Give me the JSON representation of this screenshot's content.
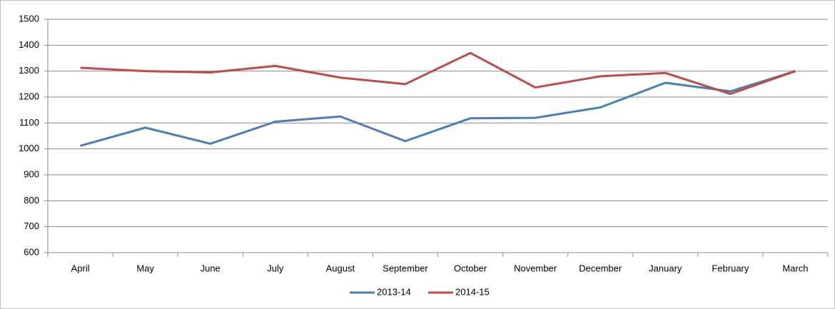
{
  "chart_data": {
    "type": "line",
    "categories": [
      "April",
      "May",
      "June",
      "July",
      "August",
      "September",
      "October",
      "November",
      "December",
      "January",
      "February",
      "March"
    ],
    "series": [
      {
        "name": "2013-14",
        "color": "#4a7ebb",
        "values": [
          1012,
          1082,
          1020,
          1105,
          1125,
          1030,
          1118,
          1120,
          1160,
          1255,
          1222,
          1300
        ]
      },
      {
        "name": "2014-15",
        "color": "#be4b48",
        "values": [
          1313,
          1300,
          1295,
          1320,
          1275,
          1250,
          1370,
          1237,
          1280,
          1293,
          1212,
          1300
        ]
      }
    ],
    "ylim": [
      600,
      1500
    ],
    "yticks": [
      600,
      700,
      800,
      900,
      1000,
      1100,
      1200,
      1300,
      1400,
      1500
    ],
    "grid": true,
    "legend": "bottom"
  }
}
